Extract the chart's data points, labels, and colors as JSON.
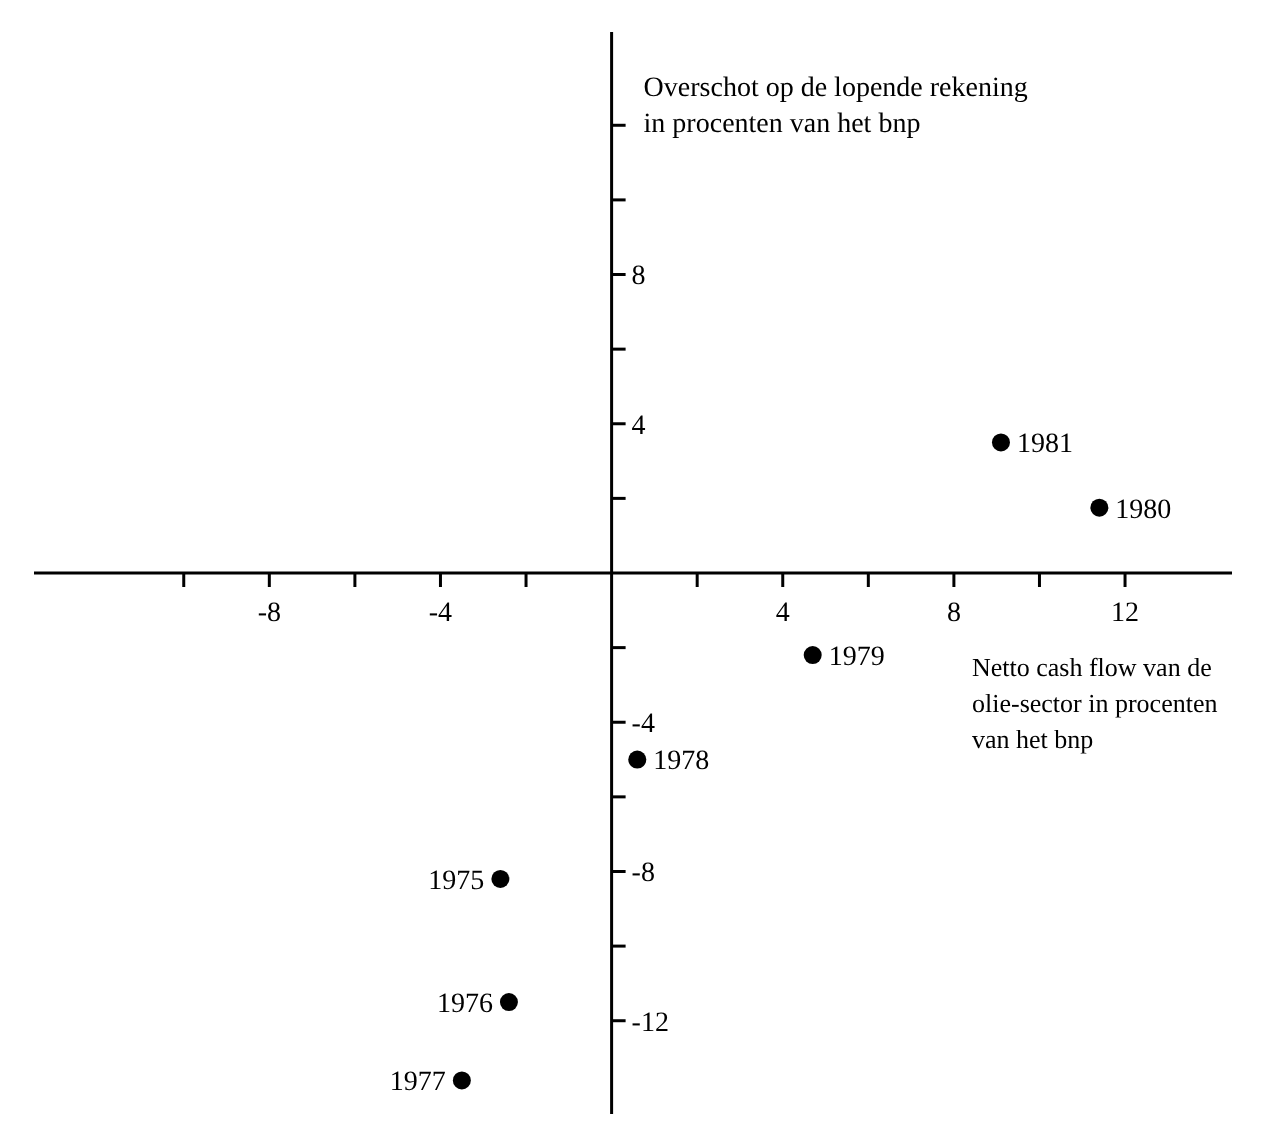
{
  "chart_data": {
    "type": "scatter",
    "xlabel": "Netto cash flow van de olie-sector in procenten van het bnp",
    "ylabel": "Overschot op de lopende rekening in procenten van het bnp",
    "x": [
      -2.6,
      -2.4,
      -3.5,
      0.6,
      4.7,
      11.4,
      9.1
    ],
    "series": [
      {
        "color": "#000000",
        "values": [
          -8.2,
          -11.5,
          -13.6,
          -5.0,
          -2.2,
          1.75,
          3.5
        ]
      }
    ],
    "marker": "circle",
    "grid": false,
    "legend": false,
    "xlim": [
      -13.5,
      14.5
    ],
    "ylim": [
      -14.5,
      14.5
    ],
    "xticks": [
      {
        "value": -10,
        "label": null
      },
      -8,
      {
        "value": -6,
        "label": null
      },
      -4,
      {
        "value": -2,
        "label": null
      },
      {
        "value": 2,
        "label": null
      },
      4,
      {
        "value": 6,
        "label": null
      },
      8,
      {
        "value": 10,
        "label": null
      },
      12
    ],
    "yticks": [
      -12,
      {
        "value": -10,
        "label": null
      },
      -8,
      {
        "value": -6,
        "label": null
      },
      -4,
      {
        "value": -2,
        "label": null
      },
      {
        "value": 2,
        "label": null
      },
      4,
      {
        "value": 6,
        "label": null
      },
      8,
      {
        "value": 10,
        "label": null
      },
      {
        "value": 12,
        "label": null
      }
    ],
    "annotations": [
      {
        "text": "1975",
        "x": -2.6,
        "y": -8.2
      },
      {
        "text": "1976",
        "x": -2.4,
        "y": -11.5
      },
      {
        "text": "1977",
        "x": -3.5,
        "y": -13.6
      },
      {
        "text": "1978",
        "x": 0.6,
        "y": -5.0
      },
      {
        "text": "1979",
        "x": 4.7,
        "y": -2.2
      },
      {
        "text": "1980",
        "x": 11.4,
        "y": 1.75
      },
      {
        "text": "1981",
        "x": 9.1,
        "y": 3.5
      }
    ]
  }
}
